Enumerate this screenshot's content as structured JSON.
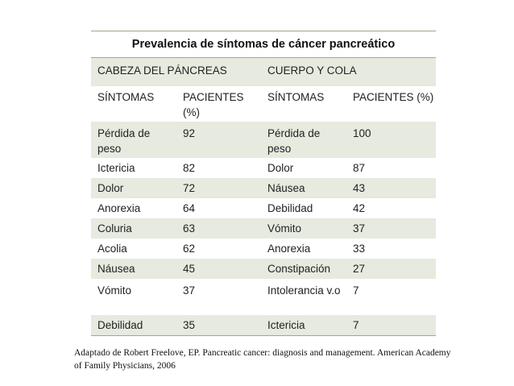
{
  "table": {
    "title": "Prevalencia de síntomas de cáncer pancreático",
    "group_headers": [
      "CABEZA DEL PÁNCREAS",
      "CUERPO Y COLA"
    ],
    "column_headers": [
      "SÍNTOMAS",
      "PACIENTES (%)",
      "SÍNTOMAS",
      "PACIENTES (%)"
    ],
    "rows": [
      [
        "Pérdida de peso",
        "92",
        "Pérdida de peso",
        "100"
      ],
      [
        "Ictericia",
        "82",
        "Dolor",
        "87"
      ],
      [
        "Dolor",
        "72",
        "Náusea",
        "43"
      ],
      [
        "Anorexia",
        "64",
        "Debilidad",
        "42"
      ],
      [
        "Coluria",
        "63",
        "Vómito",
        "37"
      ],
      [
        "Acolia",
        "62",
        "Anorexia",
        "33"
      ],
      [
        "Náusea",
        "45",
        "Constipación",
        "27"
      ],
      [
        "Vómito",
        "37",
        "Intolerancia v.o",
        "7"
      ],
      [
        "Debilidad",
        "35",
        "Ictericia",
        "7"
      ]
    ]
  },
  "caption": "Adaptado de Robert Freelove, EP. Pancreatic cancer: diagnosis and management. American Academy of Family Physicians, 2006"
}
